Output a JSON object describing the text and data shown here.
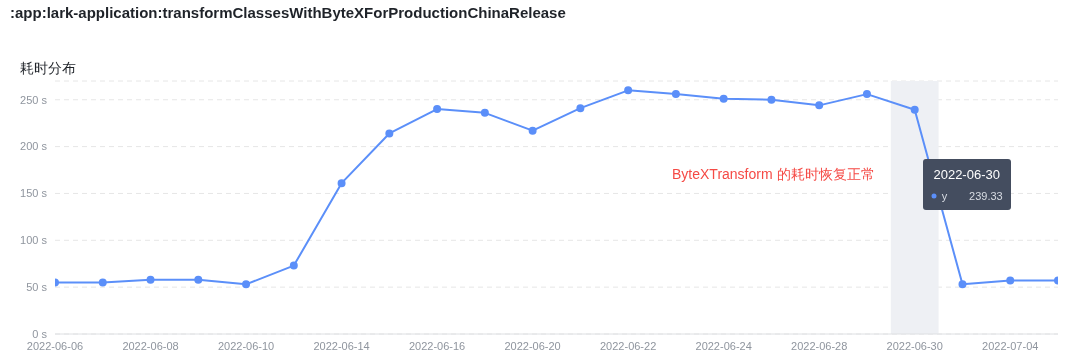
{
  "chart_data": {
    "type": "line",
    "title": ":app:lark-application:transformClassesWithByteXForProductionChinaRelease",
    "ylabel": "耗时分布",
    "categories": [
      "2022-06-06",
      null,
      "2022-06-08",
      null,
      "2022-06-10",
      null,
      "2022-06-14",
      null,
      "2022-06-16",
      null,
      "2022-06-20",
      null,
      "2022-06-22",
      null,
      "2022-06-24",
      null,
      "2022-06-28",
      null,
      "2022-06-30",
      null,
      "2022-07-04",
      null
    ],
    "series": [
      {
        "name": "y",
        "color": "#5b8ff9",
        "values": [
          55,
          55,
          58,
          58,
          53,
          73,
          161,
          214,
          240,
          236,
          217,
          241,
          260,
          256,
          251,
          250,
          244,
          256,
          239.33,
          53,
          57,
          57
        ]
      }
    ],
    "ylim": [
      0,
      270
    ],
    "yticks": [
      {
        "value": 0,
        "label": "0 s"
      },
      {
        "value": 50,
        "label": "50 s"
      },
      {
        "value": 100,
        "label": "100 s"
      },
      {
        "value": 150,
        "label": "150 s"
      },
      {
        "value": 200,
        "label": "200 s"
      },
      {
        "value": 250,
        "label": "250 s"
      }
    ],
    "bands": [
      {
        "axis": "x",
        "from": "2022-06-30",
        "to": "2022-06-30",
        "color": "#eef0f4"
      }
    ],
    "annotations": [
      "ByteXTransform 的耗时恢复正常",
      "239.33"
    ],
    "grid": "y",
    "marker": "circle",
    "line_style": "solid"
  }
}
